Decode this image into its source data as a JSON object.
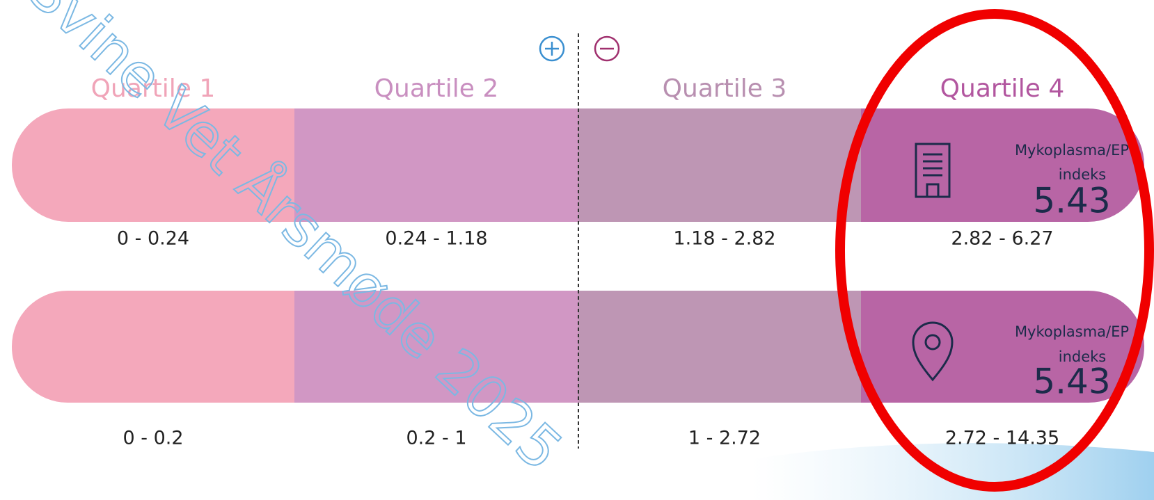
{
  "watermark": "Svine Vet Årsmøde 2025",
  "quartiles": [
    "Quartile 1",
    "Quartile 2",
    "Quartile 3",
    "Quartile 4"
  ],
  "rows": [
    {
      "ranges": [
        "0 - 0.24",
        "0.24 - 1.18",
        "1.18 - 2.82",
        "2.82 - 6.27"
      ],
      "label_lines": [
        "Mykoplasma/EP",
        "indeks"
      ],
      "value": 5.43
    },
    {
      "ranges": [
        "0 - 0.2",
        "0.2 - 1",
        "1 - 2.72",
        "2.72 - 14.35"
      ],
      "label_lines": [
        "Mykoplasma/EP",
        "indeks"
      ],
      "value": 5.43
    }
  ]
}
